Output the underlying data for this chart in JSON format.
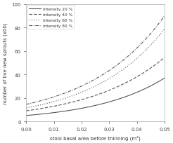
{
  "title": "",
  "xlabel": "stool basal area before thinning (m²)",
  "ylabel": "number of live new sprouts (x00)",
  "xlim": [
    0.0,
    0.05
  ],
  "ylim": [
    0,
    100
  ],
  "xticks": [
    0.0,
    0.01,
    0.02,
    0.03,
    0.04,
    0.05
  ],
  "yticks": [
    0,
    20,
    40,
    60,
    80,
    100
  ],
  "legend_labels": [
    "intensity 20 %",
    "intensity 40 %",
    "intensity 60 %",
    "intensity 80 %"
  ],
  "line_styles": [
    "-",
    "--",
    ":",
    "-."
  ],
  "line_color": "#555555",
  "background_color": "#ffffff",
  "curves": [
    {
      "a": 5.0,
      "k": 40.0
    },
    {
      "a": 9.0,
      "k": 36.0
    },
    {
      "a": 11.5,
      "k": 38.5
    },
    {
      "a": 14.5,
      "k": 36.5
    }
  ]
}
